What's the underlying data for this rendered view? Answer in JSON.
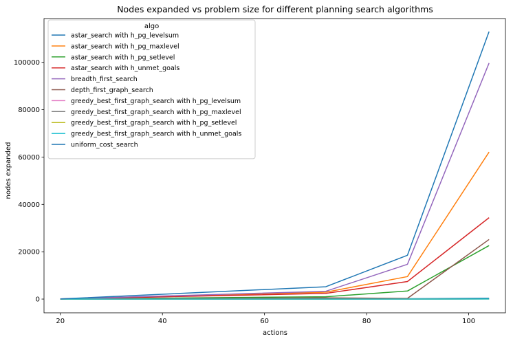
{
  "chart_data": {
    "type": "line",
    "title": "Nodes expanded vs problem size for different planning search algorithms",
    "xlabel": "actions",
    "ylabel": "nodes expanded",
    "xlim": [
      16.8,
      107.2
    ],
    "ylim": [
      -5800,
      118500
    ],
    "xticks": [
      20,
      40,
      60,
      80,
      100
    ],
    "yticks": [
      0,
      20000,
      40000,
      60000,
      80000,
      100000
    ],
    "xtick_labels": [
      "20",
      "40",
      "60",
      "80",
      "100"
    ],
    "ytick_labels": [
      "0",
      "20000",
      "40000",
      "60000",
      "80000",
      "100000"
    ],
    "grid": false,
    "legend": {
      "title": "algo",
      "placement": "top-left"
    },
    "x": [
      20,
      72,
      88,
      104
    ],
    "series": [
      {
        "name": "astar_search with h_pg_levelsum",
        "color": "#1f77b4",
        "values": [
          0,
          30,
          150,
          400
        ]
      },
      {
        "name": "astar_search with h_pg_maxlevel",
        "color": "#ff7f0e",
        "values": [
          60,
          2900,
          9500,
          62100
        ]
      },
      {
        "name": "astar_search with h_pg_setlevel",
        "color": "#2ca02c",
        "values": [
          40,
          1000,
          3400,
          22600
        ]
      },
      {
        "name": "astar_search with h_unmet_goals",
        "color": "#d62728",
        "values": [
          50,
          2400,
          7400,
          34400
        ]
      },
      {
        "name": "breadth_first_search",
        "color": "#9467bd",
        "values": [
          40,
          3300,
          14700,
          99700
        ]
      },
      {
        "name": "depth_first_graph_search",
        "color": "#8c564b",
        "values": [
          20,
          500,
          300,
          25200
        ]
      },
      {
        "name": "greedy_best_first_graph_search with h_pg_levelsum",
        "color": "#e377c2",
        "values": [
          0,
          10,
          20,
          60
        ]
      },
      {
        "name": "greedy_best_first_graph_search with h_pg_maxlevel",
        "color": "#7f7f7f",
        "values": [
          0,
          10,
          30,
          60
        ]
      },
      {
        "name": "greedy_best_first_graph_search with h_pg_setlevel",
        "color": "#bcbd22",
        "values": [
          0,
          10,
          20,
          50
        ]
      },
      {
        "name": "greedy_best_first_graph_search with h_unmet_goals",
        "color": "#17becf",
        "values": [
          0,
          10,
          20,
          50
        ]
      },
      {
        "name": "uniform_cost_search",
        "color": "#1f77b4",
        "values": [
          60,
          5200,
          18500,
          113000
        ]
      }
    ]
  }
}
